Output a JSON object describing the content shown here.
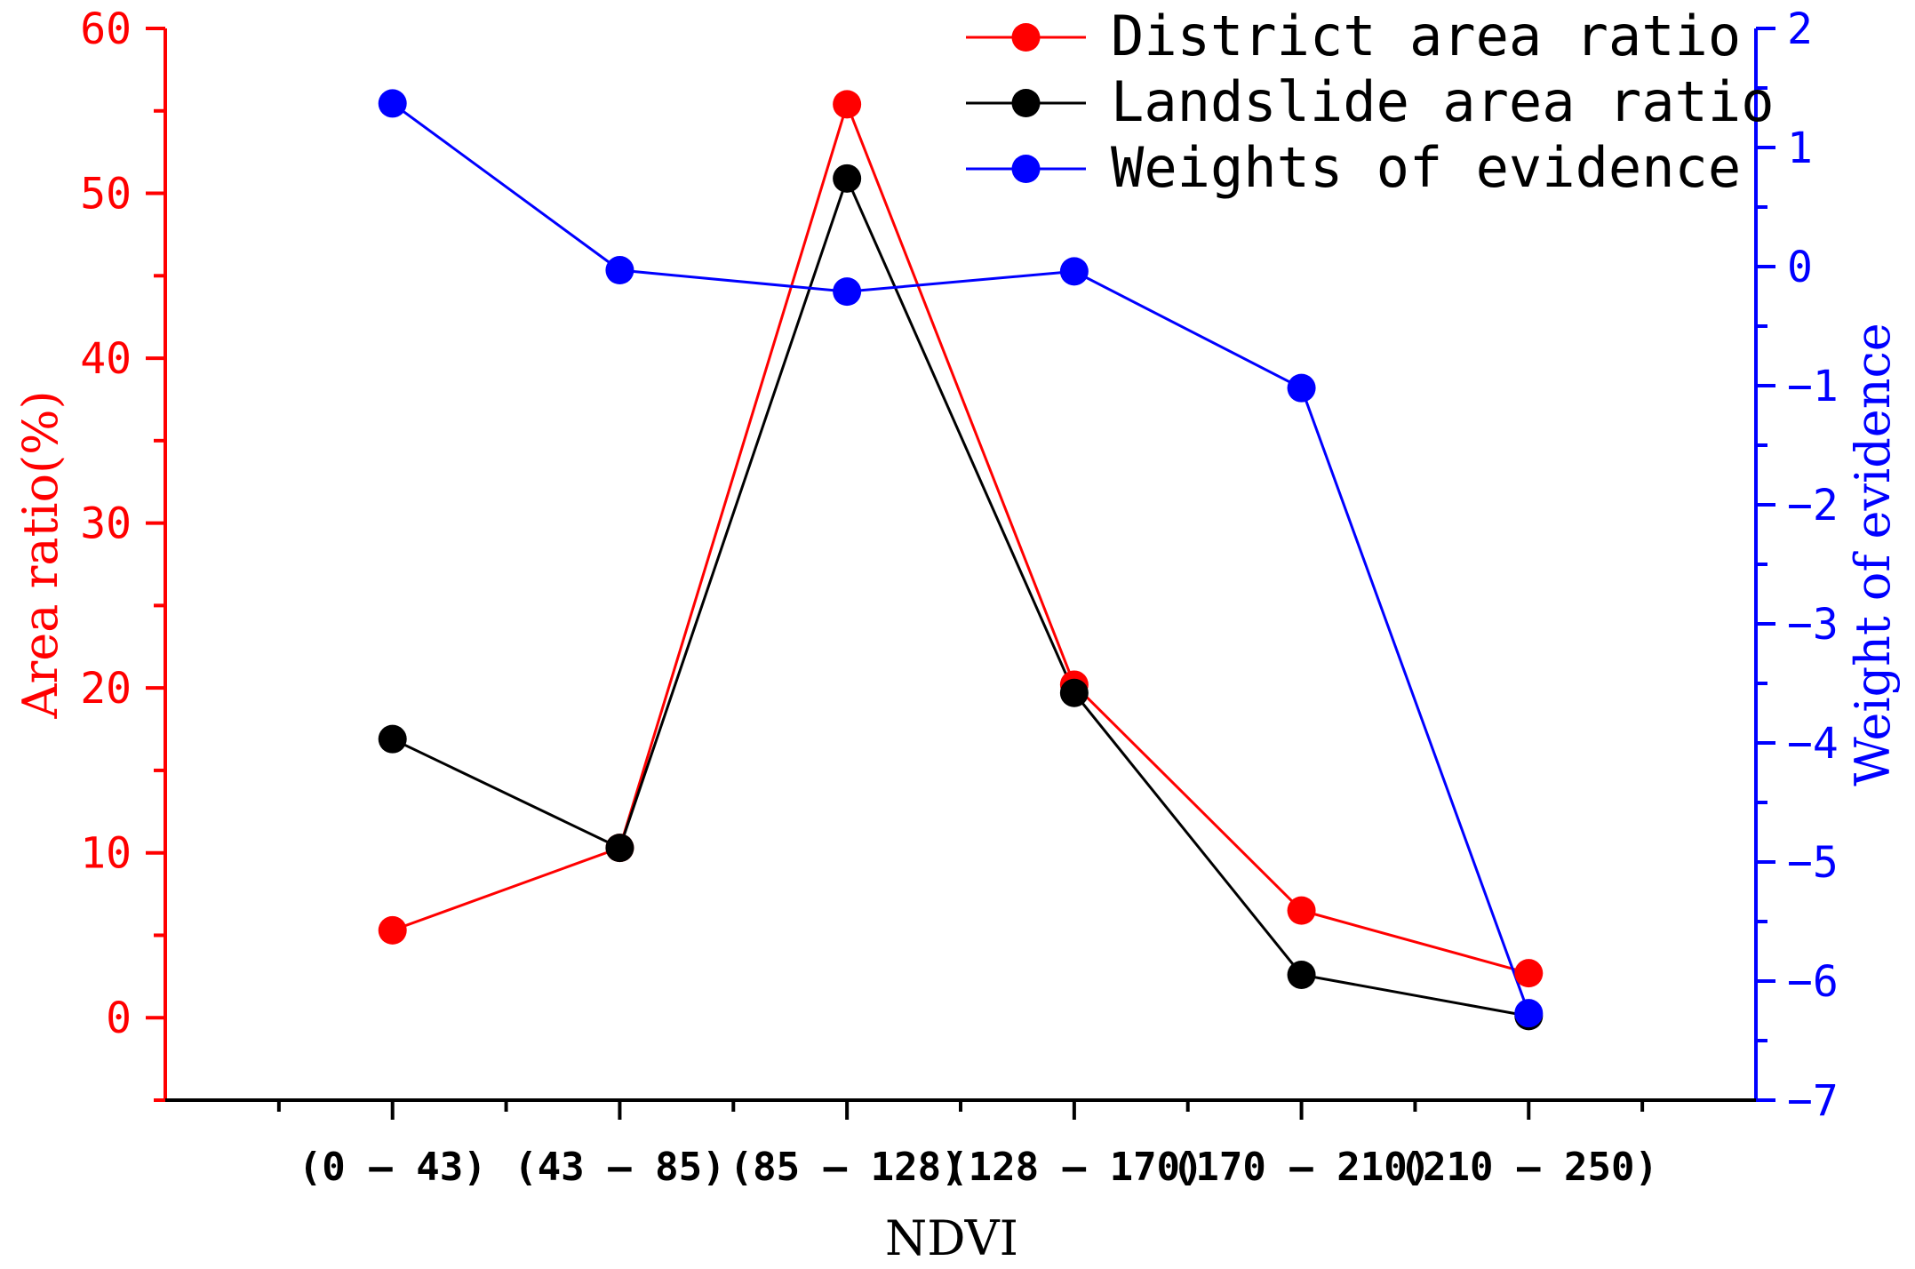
{
  "chart_data": {
    "type": "line",
    "xlabel": "NDVI",
    "ylabel_left": "Area ratio(%)",
    "ylabel_right": "Weight of evidence",
    "categories": [
      "(0 – 43)",
      "(43 – 85)",
      "(85 – 128)",
      "(128 – 170)",
      "(170 – 210)",
      "(210 – 250)"
    ],
    "ylim_left": [
      -5,
      60
    ],
    "ylim_right": [
      -7,
      2
    ],
    "yticks_left": [
      "0",
      "10",
      "20",
      "30",
      "40",
      "50",
      "60"
    ],
    "yticks_right": [
      "−7",
      "−6",
      "−5",
      "−4",
      "−3",
      "−2",
      "−1",
      "0",
      "1",
      "2"
    ],
    "legend_position": "top-right",
    "series": [
      {
        "name": "District area ratio",
        "axis": "left",
        "color": "#ff0000",
        "values": [
          5.3,
          10.3,
          55.4,
          20.2,
          6.5,
          2.7
        ]
      },
      {
        "name": "Landslide area ratio",
        "axis": "left",
        "color": "#000000",
        "values": [
          16.9,
          10.3,
          50.9,
          19.7,
          2.6,
          0.1
        ]
      },
      {
        "name": "Weights of evidence",
        "axis": "right",
        "color": "#0000ff",
        "values": [
          1.37,
          -0.03,
          -0.21,
          -0.04,
          -1.02,
          -6.27
        ]
      }
    ]
  }
}
